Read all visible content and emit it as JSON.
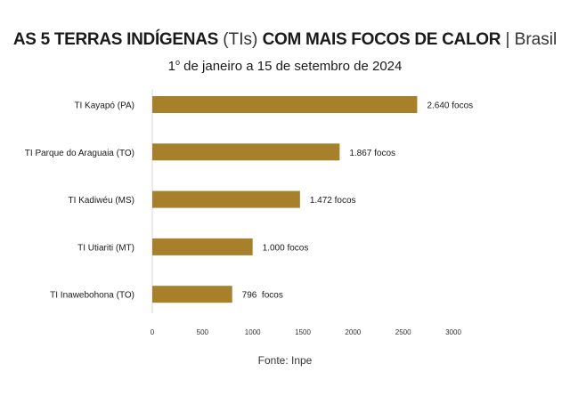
{
  "header": {
    "title_bold": "AS 5 TERRAS INDÍGENAS",
    "title_light_1": "(TIs)",
    "title_bold_2": "COM MAIS FOCOS DE CALOR",
    "title_light_2": "| Brasil",
    "subtitle_pre": "1",
    "subtitle_sup": "o",
    "subtitle_post": " de janeiro a 15 de setembro de 2024"
  },
  "footer": {
    "source": "Fonte: Inpe"
  },
  "colors": {
    "bar": "#a6802a",
    "grid": "#d9d9d9",
    "text": "#1a1a1a"
  },
  "chart_data": {
    "type": "bar",
    "orientation": "horizontal",
    "categories": [
      "TI Kayapó (PA)",
      "TI Parque do Araguaia (TO)",
      "TI Kadiwéu (MS)",
      "TI Utiariti (MT)",
      "TI Inawebohona (TO)"
    ],
    "values": [
      2640,
      1867,
      1472,
      1000,
      796
    ],
    "data_labels": [
      "2.640 focos",
      "1.867 focos",
      "1.472 focos",
      "1.000 focos",
      "796  focos"
    ],
    "x_ticks": [
      0,
      500,
      1000,
      1500,
      2000,
      2500,
      3000
    ],
    "xlim": [
      0,
      3000
    ],
    "grid": false,
    "xlabel": "",
    "ylabel": ""
  }
}
